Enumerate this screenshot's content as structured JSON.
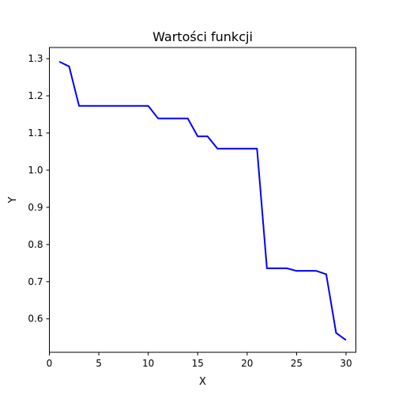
{
  "chart_data": {
    "type": "line",
    "title": "Wartości funkcji",
    "xlabel": "X",
    "ylabel": "Y",
    "xlim": [
      0,
      31
    ],
    "ylim": [
      0.51,
      1.33
    ],
    "xticks": [
      0,
      5,
      10,
      15,
      20,
      25,
      30
    ],
    "yticks": [
      0.6,
      0.7,
      0.8,
      0.9,
      1.0,
      1.1,
      1.2,
      1.3
    ],
    "xtick_labels": [
      "0",
      "5",
      "10",
      "15",
      "20",
      "25",
      "30"
    ],
    "ytick_labels": [
      "0.6",
      "0.7",
      "0.8",
      "0.9",
      "1.0",
      "1.1",
      "1.2",
      "1.3"
    ],
    "grid": false,
    "series": [
      {
        "color": "#0000ff",
        "x": [
          1,
          2,
          3,
          4,
          5,
          6,
          7,
          8,
          9,
          10,
          11,
          12,
          13,
          14,
          15,
          16,
          17,
          18,
          19,
          20,
          21,
          22,
          23,
          24,
          25,
          26,
          27,
          28,
          29,
          30
        ],
        "y": [
          1.292,
          1.279,
          1.173,
          1.173,
          1.173,
          1.173,
          1.173,
          1.173,
          1.173,
          1.173,
          1.139,
          1.139,
          1.139,
          1.139,
          1.091,
          1.091,
          1.058,
          1.058,
          1.058,
          1.058,
          1.058,
          0.736,
          0.736,
          0.736,
          0.729,
          0.729,
          0.729,
          0.72,
          0.562,
          0.543
        ]
      }
    ]
  }
}
